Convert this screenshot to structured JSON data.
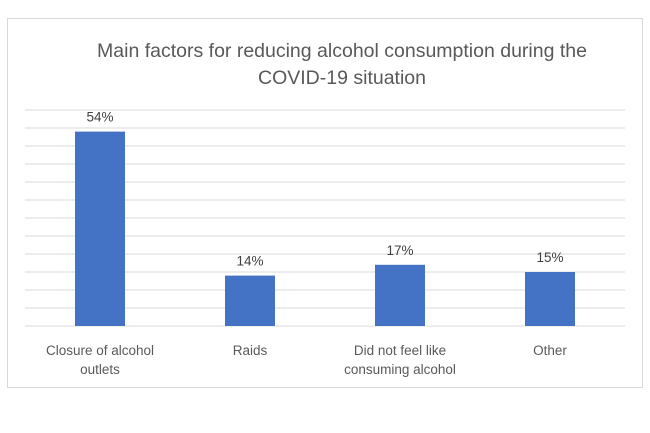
{
  "chart_data": {
    "type": "bar",
    "title": "Main factors for reducing alcohol consumption during the COVID-19 situation",
    "categories": [
      [
        "Closure of alcohol",
        "outlets"
      ],
      [
        "Raids"
      ],
      [
        "Did not feel like",
        "consuming alcohol"
      ],
      [
        "Other"
      ]
    ],
    "values": [
      54,
      14,
      17,
      15
    ],
    "data_labels": [
      "54%",
      "14%",
      "17%",
      "15%"
    ],
    "ylim": [
      0,
      60
    ],
    "grid": true,
    "legend": "none",
    "bar_color": "#4472c4",
    "grid_color": "#d9d9d9"
  }
}
